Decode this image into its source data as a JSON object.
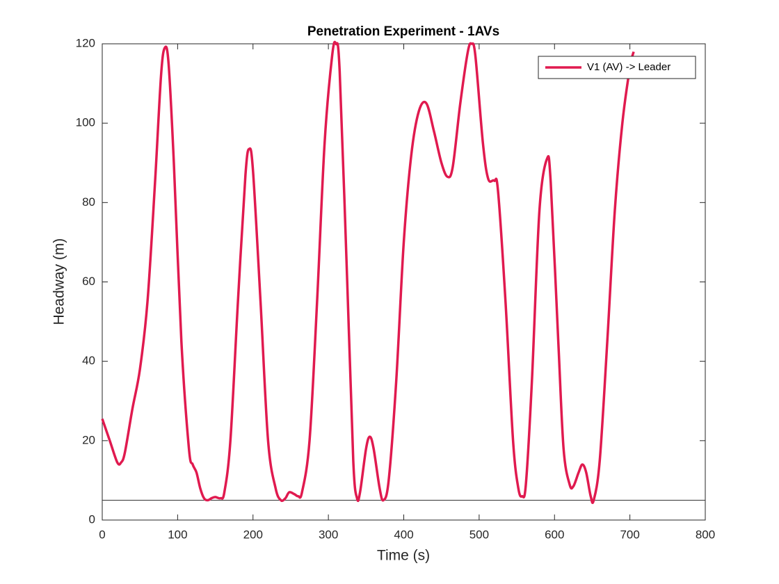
{
  "chart_data": {
    "type": "line",
    "title": "Penetration Experiment - 1AVs",
    "x_label": "Time (s)",
    "y_label": "Headway (m)",
    "x": [
      0,
      10,
      20,
      25,
      30,
      40,
      50,
      60,
      70,
      78,
      83,
      88,
      95,
      105,
      115,
      120,
      125,
      130,
      135,
      140,
      145,
      150,
      157,
      162,
      170,
      180,
      190,
      195,
      200,
      210,
      220,
      230,
      237,
      243,
      248,
      255,
      260,
      265,
      275,
      285,
      295,
      305,
      310,
      315,
      325,
      333,
      338,
      342,
      350,
      355,
      360,
      368,
      373,
      380,
      390,
      400,
      410,
      420,
      430,
      440,
      450,
      458,
      465,
      475,
      485,
      490,
      495,
      505,
      512,
      520,
      525,
      535,
      545,
      552,
      557,
      562,
      570,
      580,
      590,
      595,
      605,
      612,
      620,
      625,
      632,
      637,
      642,
      648,
      652,
      660,
      670,
      680,
      690,
      700,
      705
    ],
    "series": [
      {
        "name": "V1 (AV) -> Leader",
        "color": "#e01a4f",
        "values": [
          25.5,
          20,
          14.5,
          14.5,
          17,
          28,
          38,
          55,
          85,
          112,
          119,
          115,
          90,
          45,
          18,
          14,
          12,
          8,
          5.5,
          5,
          5.5,
          5.8,
          5.5,
          7,
          20,
          55,
          87,
          93.5,
          88,
          55,
          20,
          8,
          5,
          5.5,
          7,
          6.5,
          6,
          7,
          20,
          55,
          95,
          117,
          120,
          113,
          60,
          15,
          5.5,
          7,
          18,
          21,
          18,
          8,
          5,
          10,
          35,
          70,
          92,
          103,
          105,
          98,
          90,
          86.5,
          89,
          105,
          118,
          120,
          117,
          95,
          86,
          85.5,
          83,
          55,
          20,
          8,
          6,
          9,
          35,
          78,
          91,
          85,
          45,
          18,
          9,
          8.5,
          12,
          14,
          12,
          6,
          5,
          15,
          45,
          78,
          100,
          114,
          118
        ]
      }
    ],
    "hline": 5,
    "xlim": [
      0,
      800
    ],
    "xticks": [
      0,
      100,
      200,
      300,
      400,
      500,
      600,
      700,
      800
    ],
    "ylim": [
      0,
      120
    ],
    "yticks": [
      0,
      20,
      40,
      60,
      80,
      100,
      120
    ],
    "legend": "upper right"
  }
}
